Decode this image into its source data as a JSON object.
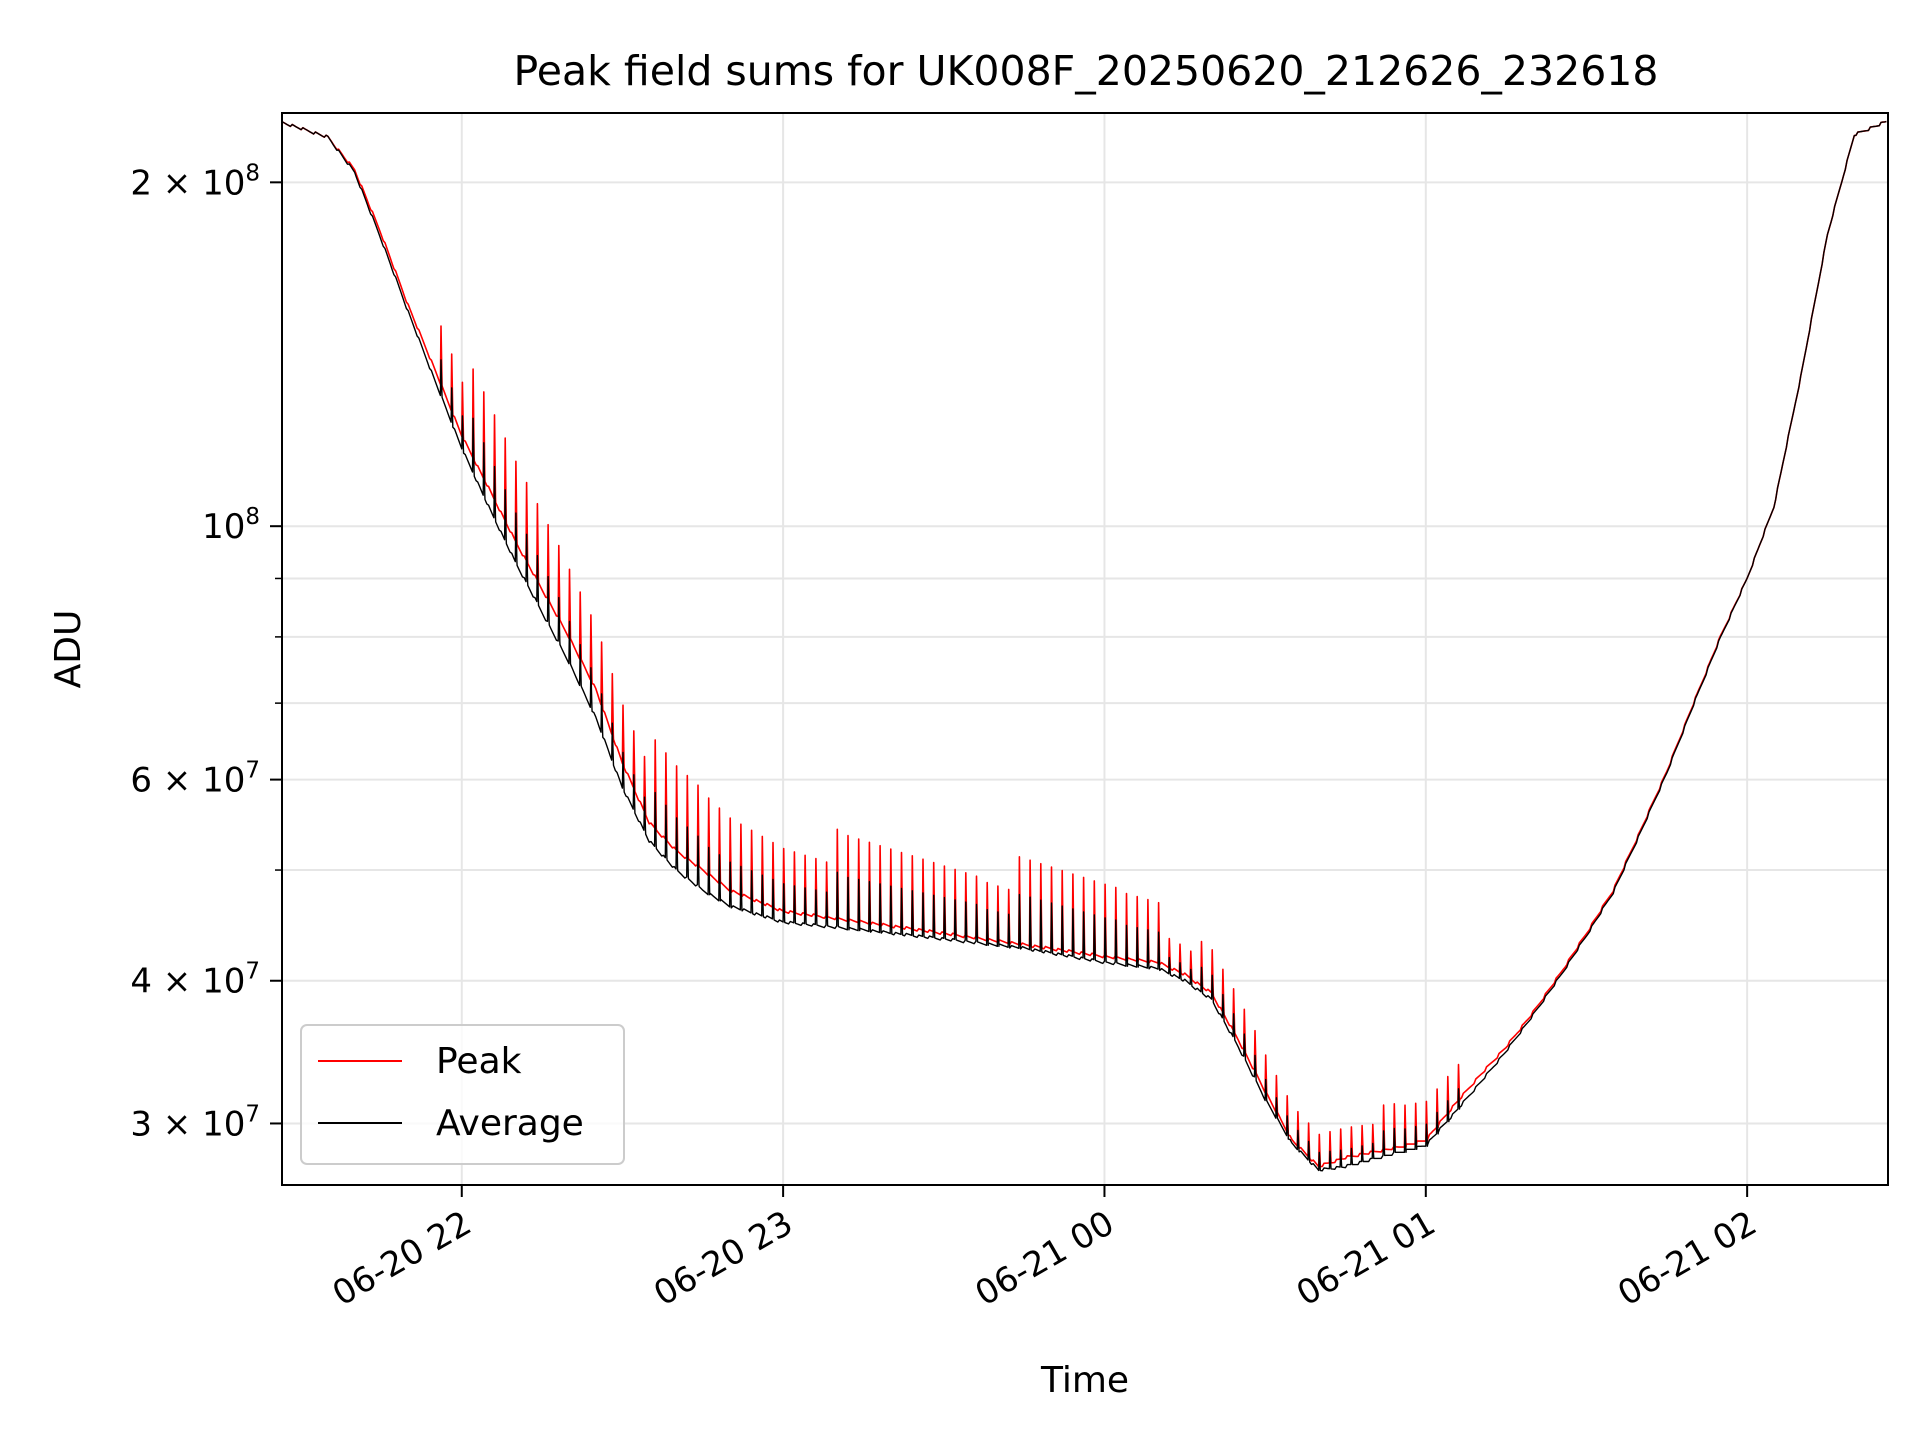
{
  "chart_data": {
    "type": "line",
    "title": "Peak field sums for UK008F_20250620_212626_232618",
    "xlabel": "Time",
    "ylabel": "ADU",
    "x_start": "2025-06-20 21:26:26",
    "x_end": "2025-06-21 02:26:18",
    "xlim": [
      "2025-06-20 21:26:26",
      "2025-06-21 02:26:18"
    ],
    "yscale": "log",
    "ylim": [
      26500000,
      230000000
    ],
    "grid": true,
    "legend_position": "lower-left",
    "x_ticks": [
      {
        "label": "06-20 22",
        "time": "2025-06-20 22:00"
      },
      {
        "label": "06-20 23",
        "time": "2025-06-20 23:00"
      },
      {
        "label": "06-21 00",
        "time": "2025-06-21 00:00"
      },
      {
        "label": "06-21 01",
        "time": "2025-06-21 01:00"
      },
      {
        "label": "06-21 02",
        "time": "2025-06-21 02:00"
      }
    ],
    "y_ticks": [
      {
        "mant": "3",
        "exp": "7",
        "value": 30000000
      },
      {
        "mant": "4",
        "exp": "7",
        "value": 40000000
      },
      {
        "mant": "6",
        "exp": "7",
        "value": 60000000
      },
      {
        "mant": "",
        "exp": "8",
        "value": 100000000
      },
      {
        "mant": "2",
        "exp": "8",
        "value": 200000000
      }
    ],
    "y_minor_ticks": [
      50000000,
      70000000,
      80000000,
      90000000
    ],
    "series": [
      {
        "name": "Peak",
        "color": "#ff0000",
        "spikes": true,
        "x": [
          "2025-06-20 21:26",
          "2025-06-20 21:35",
          "2025-06-20 21:40",
          "2025-06-20 21:45",
          "2025-06-20 21:50",
          "2025-06-20 21:55",
          "2025-06-20 22:00",
          "2025-06-20 22:05",
          "2025-06-20 22:10",
          "2025-06-20 22:15",
          "2025-06-20 22:20",
          "2025-06-20 22:25",
          "2025-06-20 22:30",
          "2025-06-20 22:35",
          "2025-06-20 22:40",
          "2025-06-20 22:45",
          "2025-06-20 22:50",
          "2025-06-20 23:00",
          "2025-06-20 23:15",
          "2025-06-20 23:30",
          "2025-06-20 23:45",
          "2025-06-21 00:00",
          "2025-06-21 00:10",
          "2025-06-21 00:15",
          "2025-06-21 00:20",
          "2025-06-21 00:25",
          "2025-06-21 00:30",
          "2025-06-21 00:35",
          "2025-06-21 00:40",
          "2025-06-21 00:45",
          "2025-06-21 00:50",
          "2025-06-21 00:55",
          "2025-06-21 01:00",
          "2025-06-21 01:05",
          "2025-06-21 01:10",
          "2025-06-21 01:15",
          "2025-06-21 01:20",
          "2025-06-21 01:25",
          "2025-06-21 01:30",
          "2025-06-21 01:35",
          "2025-06-21 01:40",
          "2025-06-21 01:45",
          "2025-06-21 01:50",
          "2025-06-21 01:55",
          "2025-06-21 02:00",
          "2025-06-21 02:05",
          "2025-06-21 02:10",
          "2025-06-21 02:15",
          "2025-06-21 02:20",
          "2025-06-21 02:26"
        ],
        "values": [
          226000000,
          219000000,
          205000000,
          180000000,
          156000000,
          137000000,
          120000000,
          108000000,
          97000000,
          88000000,
          80000000,
          72000000,
          62000000,
          55000000,
          52000000,
          50000000,
          48000000,
          46000000,
          45000000,
          44000000,
          43000000,
          42000000,
          41500000,
          40500000,
          39000000,
          35500000,
          32000000,
          29000000,
          27500000,
          28000000,
          28300000,
          28600000,
          29000000,
          31000000,
          33000000,
          35000000,
          37500000,
          40500000,
          44000000,
          48000000,
          54000000,
          61000000,
          70000000,
          80000000,
          90000000,
          104000000,
          135000000,
          180000000,
          220000000,
          226000000
        ]
      },
      {
        "name": "Average",
        "color": "#000000",
        "spikes": false,
        "x": [
          "2025-06-20 21:26",
          "2025-06-20 21:35",
          "2025-06-20 21:40",
          "2025-06-20 21:45",
          "2025-06-20 21:50",
          "2025-06-20 21:55",
          "2025-06-20 22:00",
          "2025-06-20 22:05",
          "2025-06-20 22:10",
          "2025-06-20 22:15",
          "2025-06-20 22:20",
          "2025-06-20 22:25",
          "2025-06-20 22:30",
          "2025-06-20 22:35",
          "2025-06-20 22:40",
          "2025-06-20 22:45",
          "2025-06-20 22:50",
          "2025-06-20 23:00",
          "2025-06-20 23:15",
          "2025-06-20 23:30",
          "2025-06-20 23:45",
          "2025-06-21 00:00",
          "2025-06-21 00:10",
          "2025-06-21 00:15",
          "2025-06-21 00:20",
          "2025-06-21 00:25",
          "2025-06-21 00:30",
          "2025-06-21 00:35",
          "2025-06-21 00:40",
          "2025-06-21 00:45",
          "2025-06-21 00:50",
          "2025-06-21 00:55",
          "2025-06-21 01:00",
          "2025-06-21 01:05",
          "2025-06-21 01:10",
          "2025-06-21 01:15",
          "2025-06-21 01:20",
          "2025-06-21 01:25",
          "2025-06-21 01:30",
          "2025-06-21 01:35",
          "2025-06-21 01:40",
          "2025-06-21 01:45",
          "2025-06-21 01:50",
          "2025-06-21 01:55",
          "2025-06-21 02:00",
          "2025-06-21 02:05",
          "2025-06-21 02:10",
          "2025-06-21 02:15",
          "2025-06-21 02:20",
          "2025-06-21 02:26"
        ],
        "values": [
          226000000,
          219000000,
          204000000,
          178000000,
          154000000,
          134000000,
          117000000,
          104000000,
          93000000,
          84000000,
          76000000,
          68000000,
          59000000,
          53000000,
          50000000,
          48000000,
          46500000,
          45000000,
          44300000,
          43500000,
          42700000,
          41500000,
          41000000,
          40000000,
          38500000,
          35000000,
          31500000,
          28800000,
          27300000,
          27500000,
          27900000,
          28300000,
          28700000,
          30500000,
          32500000,
          34700000,
          37300000,
          40300000,
          43800000,
          47800000,
          53800000,
          60800000,
          69800000,
          79800000,
          90000000,
          104000000,
          135000000,
          180000000,
          220000000,
          226000000
        ]
      }
    ]
  }
}
